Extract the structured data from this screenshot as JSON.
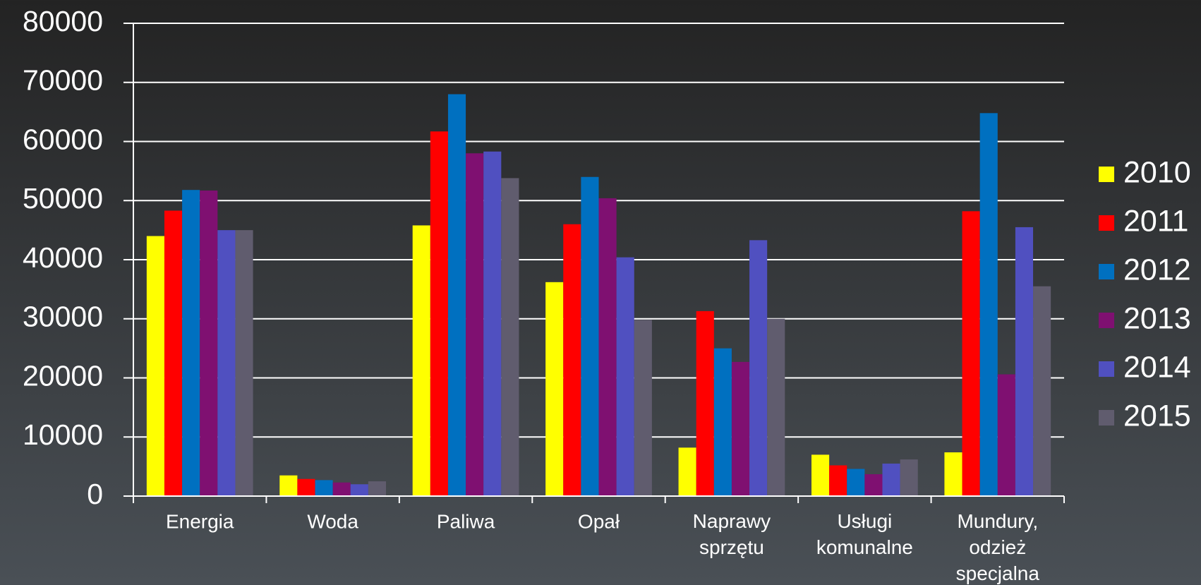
{
  "chart_data": {
    "type": "bar",
    "categories": [
      "Energia",
      "Woda",
      "Paliwa",
      "Opał",
      "Naprawy sprzętu",
      "Usługi komunalne",
      "Mundury, odzież specjalna"
    ],
    "series": [
      {
        "name": "2010",
        "color": "#ffff00",
        "values": [
          44000,
          3500,
          45800,
          36200,
          8200,
          7000,
          7400
        ]
      },
      {
        "name": "2011",
        "color": "#ff0000",
        "values": [
          48300,
          2900,
          61700,
          46000,
          31300,
          5200,
          48200
        ]
      },
      {
        "name": "2012",
        "color": "#0070c0",
        "values": [
          51800,
          2700,
          68000,
          54000,
          25000,
          4600,
          64800
        ]
      },
      {
        "name": "2013",
        "color": "#7f1071",
        "values": [
          51700,
          2300,
          58000,
          50400,
          22700,
          3700,
          20600
        ]
      },
      {
        "name": "2014",
        "color": "#5050c0",
        "values": [
          45000,
          2000,
          58300,
          40400,
          43300,
          5500,
          45500
        ]
      },
      {
        "name": "2015",
        "color": "#605c6e",
        "values": [
          45000,
          2500,
          53800,
          29800,
          30000,
          6200,
          35500
        ]
      }
    ],
    "ylim": [
      0,
      80000
    ],
    "yticks": [
      0,
      10000,
      20000,
      30000,
      40000,
      50000,
      60000,
      70000,
      80000
    ],
    "grid": true,
    "legend": "right"
  }
}
